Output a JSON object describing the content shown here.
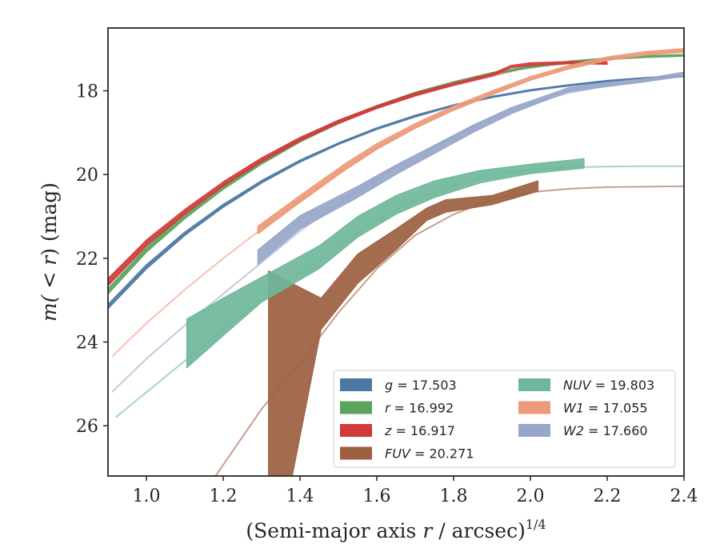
{
  "chart_data": {
    "type": "line",
    "title": "",
    "xlabel_main": "(Semi-major axis ",
    "xlabel_var": "r",
    "xlabel_tail": " / arcsec)",
    "xlabel_exp": "1/4",
    "ylabel_pre": "m(",
    "ylabel_op": " < ",
    "ylabel_var": "r",
    "ylabel_post": ") (mag)",
    "xlim": [
      0.9,
      2.4
    ],
    "ylim": [
      27.2,
      16.5
    ],
    "y_inverted": true,
    "x_ticks": [
      "1.0",
      "1.2",
      "1.4",
      "1.6",
      "1.8",
      "2.0",
      "2.2",
      "2.4"
    ],
    "y_ticks": [
      "18",
      "20",
      "22",
      "24",
      "26"
    ],
    "grid": false,
    "legend_placement": "lower-right",
    "series": [
      {
        "name": "g = 17.503",
        "label_var": "g",
        "label_value": "17.503",
        "color": "#4c78a4",
        "model": [
          [
            0.9,
            23.2
          ],
          [
            1.0,
            22.25
          ],
          [
            1.1,
            21.45
          ],
          [
            1.2,
            20.78
          ],
          [
            1.3,
            20.2
          ],
          [
            1.4,
            19.7
          ],
          [
            1.5,
            19.28
          ],
          [
            1.6,
            18.92
          ],
          [
            1.7,
            18.62
          ],
          [
            1.8,
            18.36
          ],
          [
            1.9,
            18.16
          ],
          [
            2.0,
            18.0
          ],
          [
            2.1,
            17.88
          ],
          [
            2.2,
            17.78
          ],
          [
            2.3,
            17.71
          ],
          [
            2.4,
            17.66
          ]
        ],
        "band": [
          [
            0.9,
            23.2,
            23.1
          ],
          [
            1.0,
            22.25,
            22.15
          ],
          [
            1.1,
            21.45,
            21.37
          ],
          [
            1.2,
            20.78,
            20.71
          ],
          [
            1.3,
            20.2,
            20.14
          ],
          [
            1.4,
            19.7,
            19.65
          ],
          [
            1.5,
            19.28,
            19.24
          ],
          [
            1.6,
            18.92,
            18.88
          ],
          [
            1.7,
            18.62,
            18.58
          ],
          [
            1.8,
            18.36,
            18.33
          ],
          [
            1.9,
            18.16,
            18.13
          ],
          [
            2.0,
            18.0,
            17.97
          ],
          [
            2.1,
            17.88,
            17.85
          ],
          [
            2.2,
            17.78,
            17.75
          ],
          [
            2.3,
            17.71,
            17.68
          ],
          [
            2.4,
            17.66,
            17.63
          ]
        ]
      },
      {
        "name": "r = 16.992",
        "label_var": "r",
        "label_value": "16.992",
        "color": "#5ba45b",
        "model": [
          [
            0.9,
            22.85
          ],
          [
            1.0,
            21.85
          ],
          [
            1.1,
            21.05
          ],
          [
            1.2,
            20.35
          ],
          [
            1.3,
            19.75
          ],
          [
            1.4,
            19.22
          ],
          [
            1.5,
            18.78
          ],
          [
            1.6,
            18.4
          ],
          [
            1.7,
            18.08
          ],
          [
            1.8,
            17.82
          ],
          [
            1.9,
            17.6
          ],
          [
            2.0,
            17.45
          ],
          [
            2.1,
            17.33
          ],
          [
            2.2,
            17.25
          ],
          [
            2.3,
            17.2
          ],
          [
            2.4,
            17.17
          ]
        ],
        "band": [
          [
            0.9,
            22.85,
            22.72
          ],
          [
            1.0,
            21.85,
            21.74
          ],
          [
            1.1,
            21.05,
            20.95
          ],
          [
            1.2,
            20.35,
            20.26
          ],
          [
            1.3,
            19.75,
            19.67
          ],
          [
            1.4,
            19.22,
            19.15
          ],
          [
            1.5,
            18.78,
            18.72
          ],
          [
            1.6,
            18.4,
            18.35
          ],
          [
            1.7,
            18.08,
            18.03
          ],
          [
            1.8,
            17.82,
            17.78
          ],
          [
            1.9,
            17.6,
            17.56
          ],
          [
            2.0,
            17.45,
            17.41
          ],
          [
            2.1,
            17.33,
            17.29
          ],
          [
            2.2,
            17.25,
            17.21
          ],
          [
            2.3,
            17.2,
            17.16
          ],
          [
            2.4,
            17.17,
            17.13
          ]
        ]
      },
      {
        "name": "z = 16.917",
        "label_var": "z",
        "label_value": "16.917",
        "color": "#d03a3a",
        "model": [
          [
            0.9,
            22.65
          ],
          [
            1.0,
            21.7
          ],
          [
            1.1,
            20.95
          ],
          [
            1.2,
            20.28
          ],
          [
            1.3,
            19.7
          ],
          [
            1.4,
            19.2
          ],
          [
            1.5,
            18.78
          ],
          [
            1.6,
            18.42
          ],
          [
            1.7,
            18.12
          ],
          [
            1.8,
            17.87
          ],
          [
            1.9,
            17.65
          ],
          [
            2.0,
            17.42
          ],
          [
            2.1,
            17.35
          ],
          [
            2.2,
            17.35
          ]
        ],
        "band": [
          [
            0.9,
            22.65,
            22.48
          ],
          [
            1.0,
            21.7,
            21.56
          ],
          [
            1.1,
            20.95,
            20.83
          ],
          [
            1.2,
            20.28,
            20.17
          ],
          [
            1.3,
            19.7,
            19.6
          ],
          [
            1.4,
            19.2,
            19.11
          ],
          [
            1.5,
            18.78,
            18.7
          ],
          [
            1.6,
            18.42,
            18.35
          ],
          [
            1.7,
            18.12,
            18.05
          ],
          [
            1.8,
            17.87,
            17.81
          ],
          [
            1.9,
            17.65,
            17.59
          ],
          [
            1.95,
            17.45,
            17.39
          ],
          [
            2.0,
            17.4,
            17.33
          ],
          [
            2.1,
            17.35,
            17.3
          ],
          [
            2.2,
            17.37,
            17.31
          ]
        ]
      },
      {
        "name": "FUV = 20.271",
        "label_var": "FUV",
        "label_value": "20.271",
        "color": "#9c5f3f",
        "model": [
          [
            1.18,
            27.2
          ],
          [
            1.3,
            25.6
          ],
          [
            1.4,
            24.5
          ],
          [
            1.5,
            23.3
          ],
          [
            1.6,
            22.25
          ],
          [
            1.7,
            21.45
          ],
          [
            1.8,
            20.95
          ],
          [
            1.9,
            20.6
          ],
          [
            2.0,
            20.42
          ],
          [
            2.1,
            20.34
          ],
          [
            2.2,
            20.3
          ],
          [
            2.3,
            20.29
          ],
          [
            2.4,
            20.28
          ]
        ],
        "band": [
          [
            1.318,
            27.2,
            22.3
          ],
          [
            1.38,
            27.2,
            22.6
          ],
          [
            1.455,
            23.7,
            22.95
          ],
          [
            1.55,
            22.6,
            21.9
          ],
          [
            1.65,
            21.8,
            21.3
          ],
          [
            1.73,
            21.1,
            20.8
          ],
          [
            1.78,
            20.9,
            20.6
          ],
          [
            1.9,
            20.72,
            20.5
          ],
          [
            2.02,
            20.4,
            20.15
          ]
        ]
      },
      {
        "name": "NUV = 19.803",
        "label_var": "NUV",
        "label_value": "19.803",
        "color": "#6fb79a",
        "model": [
          [
            0.92,
            25.8
          ],
          [
            1.0,
            25.2
          ],
          [
            1.1,
            24.45
          ],
          [
            1.2,
            23.7
          ],
          [
            1.3,
            23.0
          ],
          [
            1.4,
            22.35
          ],
          [
            1.5,
            21.7
          ],
          [
            1.6,
            21.1
          ],
          [
            1.7,
            20.6
          ],
          [
            1.8,
            20.25
          ],
          [
            1.9,
            20.0
          ],
          [
            2.0,
            19.88
          ],
          [
            2.1,
            19.83
          ],
          [
            2.2,
            19.81
          ],
          [
            2.3,
            19.8
          ],
          [
            2.4,
            19.8
          ]
        ],
        "band": [
          [
            1.105,
            24.62,
            23.45
          ],
          [
            1.2,
            23.85,
            22.95
          ],
          [
            1.3,
            23.05,
            22.45
          ],
          [
            1.45,
            22.25,
            21.7
          ],
          [
            1.55,
            21.5,
            21.0
          ],
          [
            1.65,
            20.95,
            20.5
          ],
          [
            1.75,
            20.55,
            20.15
          ],
          [
            1.87,
            20.2,
            19.9
          ],
          [
            2.0,
            19.98,
            19.75
          ],
          [
            2.14,
            19.85,
            19.62
          ]
        ]
      },
      {
        "name": "W1 = 17.055",
        "label_var": "W1",
        "label_value": "17.055",
        "color": "#ec9a78",
        "model": [
          [
            0.91,
            24.35
          ],
          [
            1.0,
            23.55
          ],
          [
            1.1,
            22.75
          ],
          [
            1.2,
            22.0
          ],
          [
            1.3,
            21.3
          ],
          [
            1.4,
            20.6
          ],
          [
            1.5,
            19.95
          ],
          [
            1.6,
            19.38
          ],
          [
            1.7,
            18.88
          ],
          [
            1.8,
            18.45
          ],
          [
            1.9,
            18.08
          ],
          [
            2.0,
            17.72
          ],
          [
            2.1,
            17.45
          ],
          [
            2.2,
            17.25
          ],
          [
            2.3,
            17.12
          ],
          [
            2.4,
            17.05
          ]
        ],
        "band": [
          [
            1.29,
            21.42,
            21.23
          ],
          [
            1.4,
            20.67,
            20.5
          ],
          [
            1.52,
            19.88,
            19.72
          ],
          [
            1.6,
            19.4,
            19.26
          ],
          [
            1.7,
            18.9,
            18.78
          ],
          [
            1.8,
            18.47,
            18.36
          ],
          [
            1.9,
            18.1,
            18.0
          ],
          [
            2.0,
            17.75,
            17.66
          ],
          [
            2.1,
            17.48,
            17.39
          ],
          [
            2.2,
            17.28,
            17.19
          ],
          [
            2.3,
            17.15,
            17.06
          ],
          [
            2.4,
            17.08,
            16.99
          ]
        ]
      },
      {
        "name": "W2 = 17.660",
        "label_var": "W2",
        "label_value": "17.660",
        "color": "#97a6c9",
        "model": [
          [
            0.91,
            25.2
          ],
          [
            1.0,
            24.4
          ],
          [
            1.1,
            23.6
          ],
          [
            1.2,
            22.85
          ],
          [
            1.3,
            22.1
          ],
          [
            1.4,
            21.35
          ],
          [
            1.5,
            20.7
          ],
          [
            1.6,
            20.1
          ],
          [
            1.7,
            19.55
          ],
          [
            1.8,
            19.1
          ],
          [
            1.9,
            18.65
          ],
          [
            2.0,
            18.3
          ],
          [
            2.1,
            18.05
          ],
          [
            2.2,
            17.88
          ],
          [
            2.3,
            17.75
          ],
          [
            2.4,
            17.66
          ]
        ],
        "band": [
          [
            1.29,
            22.15,
            21.8
          ],
          [
            1.4,
            21.3,
            20.98
          ],
          [
            1.55,
            20.55,
            20.28
          ],
          [
            1.65,
            20.0,
            19.77
          ],
          [
            1.75,
            19.5,
            19.3
          ],
          [
            1.85,
            19.0,
            18.82
          ],
          [
            1.95,
            18.55,
            18.4
          ],
          [
            2.02,
            18.3,
            18.18
          ],
          [
            2.1,
            18.02,
            17.92
          ],
          [
            2.2,
            17.9,
            17.8
          ],
          [
            2.29,
            17.8,
            17.72
          ],
          [
            2.4,
            17.65,
            17.55
          ]
        ]
      }
    ]
  }
}
